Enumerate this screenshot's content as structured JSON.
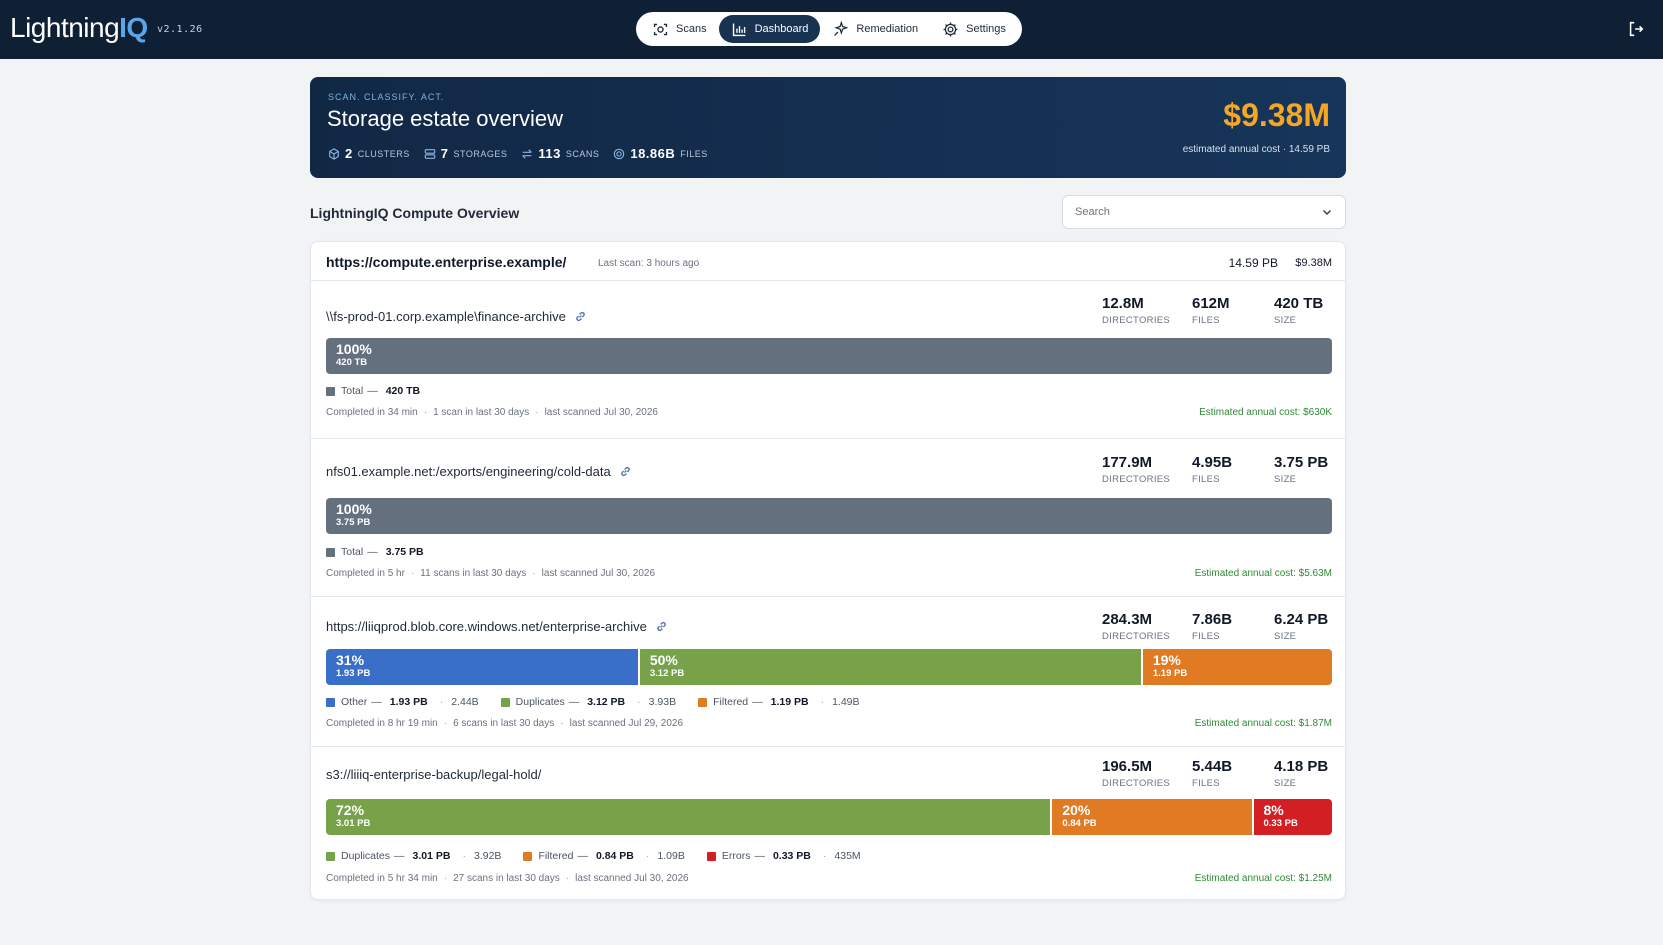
{
  "app": {
    "logo_main": "Lightning",
    "logo_accent": "IQ",
    "version": "v2.1.26"
  },
  "nav": {
    "items": [
      {
        "label": "Scans",
        "icon": "scan-icon",
        "active": false
      },
      {
        "label": "Dashboard",
        "icon": "bar-chart-icon",
        "active": true
      },
      {
        "label": "Remediation",
        "icon": "sparkle-icon",
        "active": false
      },
      {
        "label": "Settings",
        "icon": "gear-icon",
        "active": false
      }
    ]
  },
  "hero": {
    "eyebrow": "SCAN. CLASSIFY. ACT.",
    "title": "Storage estate overview",
    "stats": [
      {
        "value": "2",
        "label": "CLUSTERS",
        "icon": "cluster-icon"
      },
      {
        "value": "7",
        "label": "STORAGES",
        "icon": "storage-icon"
      },
      {
        "value": "113",
        "label": "SCANS",
        "icon": "arrows-icon"
      },
      {
        "value": "18.86B",
        "label": "FILES",
        "icon": "files-icon"
      }
    ],
    "cost": "$9.38M",
    "cost_sub": "estimated annual cost · 14.59 PB"
  },
  "section": {
    "title": "LightningIQ Compute Overview",
    "search_placeholder": "Search"
  },
  "cluster": {
    "url": "https://compute.enterprise.example/",
    "last_scan": "Last scan: 3 hours ago",
    "size": "14.59 PB",
    "cost": "$9.38M"
  },
  "labels": {
    "directories": "DIRECTORIES",
    "files": "FILES",
    "size": "SIZE",
    "dash": "—"
  },
  "storages": [
    {
      "path": "\\\\fs-prod-01.corp.example\\finance-archive",
      "has_link": true,
      "directories": "12.8M",
      "files": "612M",
      "size": "420 TB",
      "segments": [
        {
          "pct": "100%",
          "size": "420 TB",
          "color": "#65707f",
          "fraction": 1.0
        }
      ],
      "legend": [
        {
          "name": "Total",
          "value": "420 TB",
          "count": "",
          "color": "#65707f"
        }
      ],
      "meta": [
        "Completed in 34 min",
        "1 scan in last 30 days",
        "last scanned Jul 30, 2026"
      ],
      "est_cost": "Estimated annual cost: $630K"
    },
    {
      "path": "nfs01.example.net:/exports/engineering/cold-data",
      "has_link": true,
      "directories": "177.9M",
      "files": "4.95B",
      "size": "3.75 PB",
      "segments": [
        {
          "pct": "100%",
          "size": "3.75 PB",
          "color": "#65707f",
          "fraction": 1.0
        }
      ],
      "legend": [
        {
          "name": "Total",
          "value": "3.75 PB",
          "count": "",
          "color": "#65707f"
        }
      ],
      "meta": [
        "Completed in 5 hr",
        "11 scans in last 30 days",
        "last scanned Jul 30, 2026"
      ],
      "est_cost": "Estimated annual cost: $5.63M"
    },
    {
      "path": "https://liiqprod.blob.core.windows.net/enterprise-archive",
      "has_link": true,
      "directories": "284.3M",
      "files": "7.86B",
      "size": "6.24 PB",
      "segments": [
        {
          "pct": "31%",
          "size": "1.93 PB",
          "color": "#3a6fc9",
          "fraction": 0.31
        },
        {
          "pct": "50%",
          "size": "3.12 PB",
          "color": "#78a24a",
          "fraction": 0.5
        },
        {
          "pct": "19%",
          "size": "1.19 PB",
          "color": "#e07b23",
          "fraction": 0.19
        }
      ],
      "legend": [
        {
          "name": "Other",
          "value": "1.93 PB",
          "count": "2.44B",
          "color": "#3a6fc9"
        },
        {
          "name": "Duplicates",
          "value": "3.12 PB",
          "count": "3.93B",
          "color": "#78a24a"
        },
        {
          "name": "Filtered",
          "value": "1.19 PB",
          "count": "1.49B",
          "color": "#e07b23"
        }
      ],
      "meta": [
        "Completed in 8 hr 19 min",
        "6 scans in last 30 days",
        "last scanned Jul 29, 2026"
      ],
      "est_cost": "Estimated annual cost: $1.87M"
    },
    {
      "path": "s3://liiiq-enterprise-backup/legal-hold/",
      "has_link": false,
      "directories": "196.5M",
      "files": "5.44B",
      "size": "4.18 PB",
      "segments": [
        {
          "pct": "72%",
          "size": "3.01 PB",
          "color": "#78a24a",
          "fraction": 0.72
        },
        {
          "pct": "20%",
          "size": "0.84 PB",
          "color": "#e07b23",
          "fraction": 0.2
        },
        {
          "pct": "8%",
          "size": "0.33 PB",
          "color": "#d11f24",
          "fraction": 0.08
        }
      ],
      "legend": [
        {
          "name": "Duplicates",
          "value": "3.01 PB",
          "count": "3.92B",
          "color": "#78a24a"
        },
        {
          "name": "Filtered",
          "value": "0.84 PB",
          "count": "1.09B",
          "color": "#e07b23"
        },
        {
          "name": "Errors",
          "value": "0.33 PB",
          "count": "435M",
          "color": "#d11f24"
        }
      ],
      "meta": [
        "Completed in 5 hr 34 min",
        "27 scans in last 30 days",
        "last scanned Jul 30, 2026"
      ],
      "est_cost": "Estimated annual cost: $1.25M"
    }
  ]
}
